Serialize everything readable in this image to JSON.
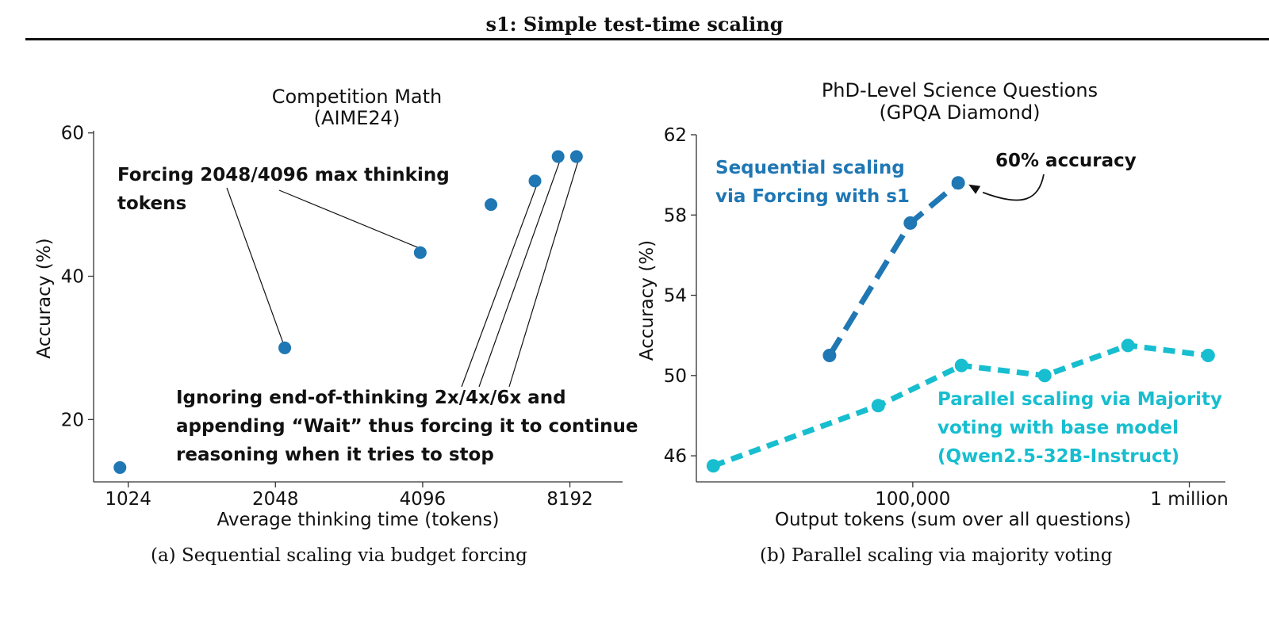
{
  "page": {
    "running_title": "s1: Simple test-time scaling"
  },
  "colors": {
    "dark_blue": "#1f77b4",
    "light_blue": "#17becf",
    "axis": "#333333",
    "text": "#111111"
  },
  "chart_data": [
    {
      "id": "a",
      "type": "scatter",
      "title": "Competition Math",
      "subtitle": "(AIME24)",
      "xlabel": "Average thinking time (tokens)",
      "ylabel": "Accuracy (%)",
      "x_scale": "log2",
      "x_ticks": [
        1024,
        2048,
        4096,
        8192
      ],
      "x_tick_labels": [
        "1024",
        "2048",
        "4096",
        "8192"
      ],
      "xlim": [
        870,
        10500
      ],
      "y_ticks": [
        20,
        40,
        60
      ],
      "y_tick_labels": [
        "20",
        "40",
        "60"
      ],
      "ylim": [
        11.3,
        60.3
      ],
      "grid": false,
      "series": [
        {
          "color": "#1f77b4",
          "points": [
            {
              "x": 985,
              "y": 13.3
            },
            {
              "x": 2140,
              "y": 30.0
            },
            {
              "x": 4050,
              "y": 43.3
            },
            {
              "x": 5650,
              "y": 50.0
            },
            {
              "x": 6950,
              "y": 53.3
            },
            {
              "x": 7750,
              "y": 56.7
            },
            {
              "x": 8450,
              "y": 56.7
            }
          ]
        }
      ],
      "annotations": [
        {
          "text_lines": [
            "Forcing 2048/4096 max thinking",
            "tokens"
          ],
          "points_to": [
            1,
            2
          ]
        },
        {
          "text_lines": [
            "Ignoring end-of-thinking 2x/4x/6x and",
            "appending “Wait” thus forcing it to continue",
            "reasoning when it tries to stop"
          ],
          "points_to": [
            4,
            5,
            6
          ]
        }
      ],
      "caption": "(a) Sequential scaling via budget forcing"
    },
    {
      "id": "b",
      "type": "line",
      "title": "PhD-Level Science Questions",
      "subtitle": "(GPQA Diamond)",
      "xlabel": "Output tokens (sum over all questions)",
      "ylabel": "Accuracy (%)",
      "x_scale": "log10",
      "x_ticks": [
        100000,
        1000000
      ],
      "x_tick_labels": [
        "100,000",
        "1 million"
      ],
      "xlim": [
        16500,
        1350000
      ],
      "y_ticks": [
        46,
        50,
        54,
        58,
        62
      ],
      "y_tick_labels": [
        "46",
        "50",
        "54",
        "58",
        "62"
      ],
      "ylim": [
        44.7,
        62
      ],
      "grid": false,
      "series": [
        {
          "label_lines": [
            "Sequential scaling",
            "via Forcing with s1"
          ],
          "color": "#1f77b4",
          "points": [
            {
              "x": 50000,
              "y": 51.0
            },
            {
              "x": 98000,
              "y": 57.6
            },
            {
              "x": 146000,
              "y": 59.6
            }
          ]
        },
        {
          "label_lines": [
            "Parallel scaling via Majority",
            "voting with base model",
            "(Qwen2.5-32B-Instruct)"
          ],
          "color": "#17becf",
          "points": [
            {
              "x": 19000,
              "y": 45.5
            },
            {
              "x": 75000,
              "y": 48.5
            },
            {
              "x": 150000,
              "y": 50.5
            },
            {
              "x": 300000,
              "y": 50.0
            },
            {
              "x": 600000,
              "y": 51.5
            },
            {
              "x": 1170000,
              "y": 51.0
            }
          ]
        }
      ],
      "annotations": [
        {
          "text": "60% accuracy",
          "points_to_series": 0,
          "points_to": 2
        }
      ],
      "caption": "(b) Parallel scaling via majority voting"
    }
  ]
}
